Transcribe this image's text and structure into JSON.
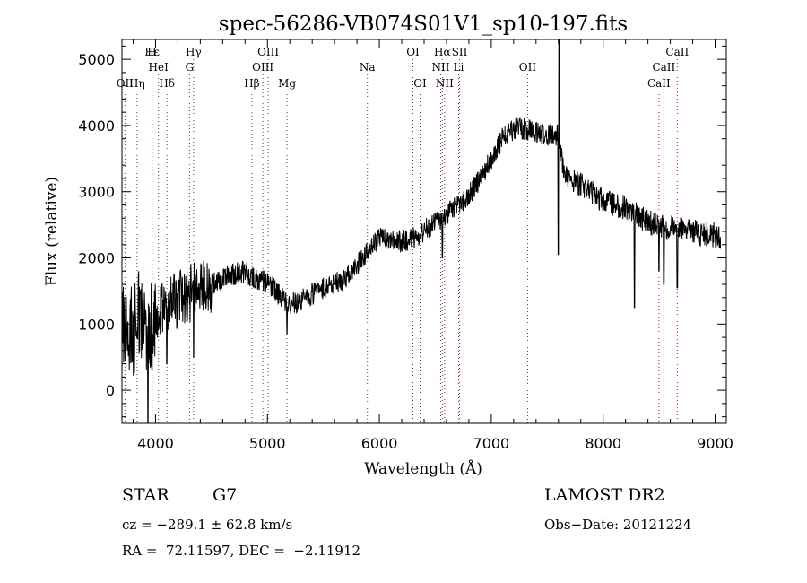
{
  "chart_data": {
    "type": "line",
    "title": "spec-56286-VB074S01V1_sp10-197.fits",
    "xlabel": "Wavelength (Å)",
    "ylabel": "Flux (relative)",
    "xlim": [
      3700,
      9100
    ],
    "ylim": [
      -500,
      5300
    ],
    "xticks": [
      4000,
      5000,
      6000,
      7000,
      8000,
      9000
    ],
    "yticks": [
      0,
      1000,
      2000,
      3000,
      4000,
      5000
    ],
    "grid": false,
    "spectrum_envelope": {
      "x": [
        3700,
        3750,
        3800,
        3850,
        3900,
        3950,
        4000,
        4100,
        4200,
        4300,
        4400,
        4500,
        4600,
        4700,
        4800,
        4900,
        5000,
        5100,
        5200,
        5300,
        5400,
        5500,
        5600,
        5700,
        5800,
        5900,
        6000,
        6100,
        6200,
        6300,
        6400,
        6500,
        6600,
        6700,
        6800,
        6900,
        7000,
        7100,
        7200,
        7300,
        7400,
        7500,
        7550,
        7600,
        7650,
        7700,
        7800,
        7900,
        8000,
        8100,
        8200,
        8300,
        8400,
        8500,
        8600,
        8700,
        8800,
        8900,
        9000,
        9050
      ],
      "y": [
        900,
        1000,
        900,
        1100,
        950,
        1000,
        1150,
        1300,
        1350,
        1450,
        1550,
        1600,
        1700,
        1750,
        1800,
        1650,
        1650,
        1450,
        1300,
        1350,
        1450,
        1550,
        1600,
        1700,
        1900,
        2100,
        2300,
        2250,
        2250,
        2300,
        2400,
        2550,
        2650,
        2800,
        2950,
        3200,
        3500,
        3800,
        3950,
        3950,
        3900,
        3850,
        3850,
        3850,
        3250,
        3200,
        3100,
        3000,
        2850,
        2800,
        2750,
        2650,
        2550,
        2500,
        2450,
        2450,
        2400,
        2350,
        2350,
        2300
      ]
    },
    "absorption_features": [
      {
        "x": 3933,
        "y": -500
      },
      {
        "x": 3968,
        "y": 300
      },
      {
        "x": 4101,
        "y": 400
      },
      {
        "x": 4340,
        "y": 500
      },
      {
        "x": 5175,
        "y": 850
      },
      {
        "x": 6563,
        "y": 2000
      },
      {
        "x": 7600,
        "y": 2050
      },
      {
        "x": 8280,
        "y": 1250
      },
      {
        "x": 8498,
        "y": 1800
      },
      {
        "x": 8542,
        "y": 1600
      },
      {
        "x": 8662,
        "y": 1550
      }
    ],
    "emission_features": [
      {
        "x": 7605,
        "y": 5300
      }
    ],
    "line_markers": [
      {
        "label": "Hε",
        "x": 3970,
        "row": 1,
        "color": "#444444"
      },
      {
        "label": "H",
        "x": 3968,
        "row": 1,
        "color": "#444444"
      },
      {
        "label": "HeI",
        "x": 4026,
        "row": 2,
        "color": "#444444"
      },
      {
        "label": "OII",
        "x": 3727,
        "row": 3,
        "color": "#444444"
      },
      {
        "label": "Hη",
        "x": 3835,
        "row": 3,
        "color": "#444444"
      },
      {
        "label": "Hδ",
        "x": 4102,
        "row": 3,
        "color": "#444444"
      },
      {
        "label": "Hγ",
        "x": 4340,
        "row": 1,
        "color": "#444444"
      },
      {
        "label": "G",
        "x": 4304,
        "row": 2,
        "color": "#444444"
      },
      {
        "label": "OIII",
        "x": 5007,
        "row": 1,
        "color": "#444444"
      },
      {
        "label": "OIII",
        "x": 4959,
        "row": 2,
        "color": "#444444"
      },
      {
        "label": "Hβ",
        "x": 4861,
        "row": 3,
        "color": "#444444"
      },
      {
        "label": "Mg",
        "x": 5175,
        "row": 3,
        "color": "#444444"
      },
      {
        "label": "Na",
        "x": 5893,
        "row": 2,
        "color": "#444444"
      },
      {
        "label": "OI",
        "x": 6300,
        "row": 1,
        "color": "#444444"
      },
      {
        "label": "OI",
        "x": 6364,
        "row": 3,
        "color": "#444444"
      },
      {
        "label": "Hα",
        "x": 6563,
        "row": 1,
        "color": "#cc0000"
      },
      {
        "label": "SII",
        "x": 6717,
        "row": 1,
        "color": "#444444"
      },
      {
        "label": "NII",
        "x": 6548,
        "row": 2,
        "color": "#444444"
      },
      {
        "label": "NII",
        "x": 6583,
        "row": 3,
        "color": "#444444"
      },
      {
        "label": "Li",
        "x": 6708,
        "row": 2,
        "color": "#cc0000"
      },
      {
        "label": "OII",
        "x": 7325,
        "row": 2,
        "color": "#444444"
      },
      {
        "label": "CaII",
        "x": 8662,
        "row": 1,
        "color": "#cc0000"
      },
      {
        "label": "CaII",
        "x": 8542,
        "row": 2,
        "color": "#cc0000"
      },
      {
        "label": "CaII",
        "x": 8498,
        "row": 3,
        "color": "#cc0000"
      }
    ],
    "colors": {
      "spectrum": "#000000",
      "axes": "#000000"
    }
  },
  "info": {
    "object_class": "STAR",
    "subclass": "G7",
    "survey": "LAMOST DR2",
    "redshift_text": "cz = −289.1 ± 62.8 km/s",
    "obs_date_text": "Obs−Date: 20121224",
    "coords_text": "RA =  72.11597, DEC =  −2.11912"
  }
}
